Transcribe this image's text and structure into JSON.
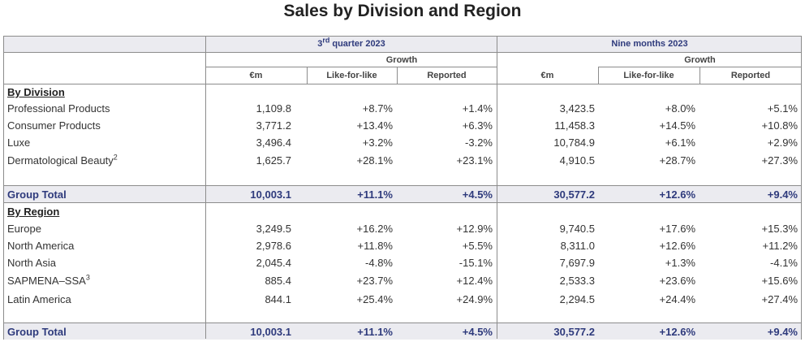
{
  "title": "Sales by Division and Region",
  "headers": {
    "q3_prefix": "3",
    "q3_sup": "rd",
    "q3_suffix": " quarter 2023",
    "nine": "Nine months 2023",
    "growth": "Growth",
    "em": "€m",
    "lfl": "Like-for-like",
    "reported": "Reported"
  },
  "division": {
    "heading": "By Division",
    "rows": [
      {
        "label": "Professional Products",
        "sup": "",
        "q3_em": "1,109.8",
        "q3_lfl": "+8.7%",
        "q3_rep": "+1.4%",
        "nm_em": "3,423.5",
        "nm_lfl": "+8.0%",
        "nm_rep": "+5.1%"
      },
      {
        "label": "Consumer Products",
        "sup": "",
        "q3_em": "3,771.2",
        "q3_lfl": "+13.4%",
        "q3_rep": "+6.3%",
        "nm_em": "11,458.3",
        "nm_lfl": "+14.5%",
        "nm_rep": "+10.8%"
      },
      {
        "label": "Luxe",
        "sup": "",
        "q3_em": "3,496.4",
        "q3_lfl": "+3.2%",
        "q3_rep": "-3.2%",
        "nm_em": "10,784.9",
        "nm_lfl": "+6.1%",
        "nm_rep": "+2.9%"
      },
      {
        "label": "Dermatological Beauty",
        "sup": "2",
        "q3_em": "1,625.7",
        "q3_lfl": "+28.1%",
        "q3_rep": "+23.1%",
        "nm_em": "4,910.5",
        "nm_lfl": "+28.7%",
        "nm_rep": "+27.3%"
      }
    ],
    "total": {
      "label": "Group Total",
      "q3_em": "10,003.1",
      "q3_lfl": "+11.1%",
      "q3_rep": "+4.5%",
      "nm_em": "30,577.2",
      "nm_lfl": "+12.6%",
      "nm_rep": "+9.4%"
    }
  },
  "region": {
    "heading": "By Region",
    "rows": [
      {
        "label": "Europe",
        "sup": "",
        "q3_em": "3,249.5",
        "q3_lfl": "+16.2%",
        "q3_rep": "+12.9%",
        "nm_em": "9,740.5",
        "nm_lfl": "+17.6%",
        "nm_rep": "+15.3%"
      },
      {
        "label": "North America",
        "sup": "",
        "q3_em": "2,978.6",
        "q3_lfl": "+11.8%",
        "q3_rep": "+5.5%",
        "nm_em": "8,311.0",
        "nm_lfl": "+12.6%",
        "nm_rep": "+11.2%"
      },
      {
        "label": "North Asia",
        "sup": "",
        "q3_em": "2,045.4",
        "q3_lfl": "-4.8%",
        "q3_rep": "-15.1%",
        "nm_em": "7,697.9",
        "nm_lfl": "+1.3%",
        "nm_rep": "-4.1%"
      },
      {
        "label": "SAPMENA–SSA",
        "sup": "3",
        "q3_em": "885.4",
        "q3_lfl": "+23.7%",
        "q3_rep": "+12.4%",
        "nm_em": "2,533.3",
        "nm_lfl": "+23.6%",
        "nm_rep": "+15.6%"
      },
      {
        "label": "Latin America",
        "sup": "",
        "q3_em": "844.1",
        "q3_lfl": "+25.4%",
        "q3_rep": "+24.9%",
        "nm_em": "2,294.5",
        "nm_lfl": "+24.4%",
        "nm_rep": "+27.4%"
      }
    ],
    "total": {
      "label": "Group Total",
      "q3_em": "10,003.1",
      "q3_lfl": "+11.1%",
      "q3_rep": "+4.5%",
      "nm_em": "30,577.2",
      "nm_lfl": "+12.6%",
      "nm_rep": "+9.4%"
    }
  }
}
